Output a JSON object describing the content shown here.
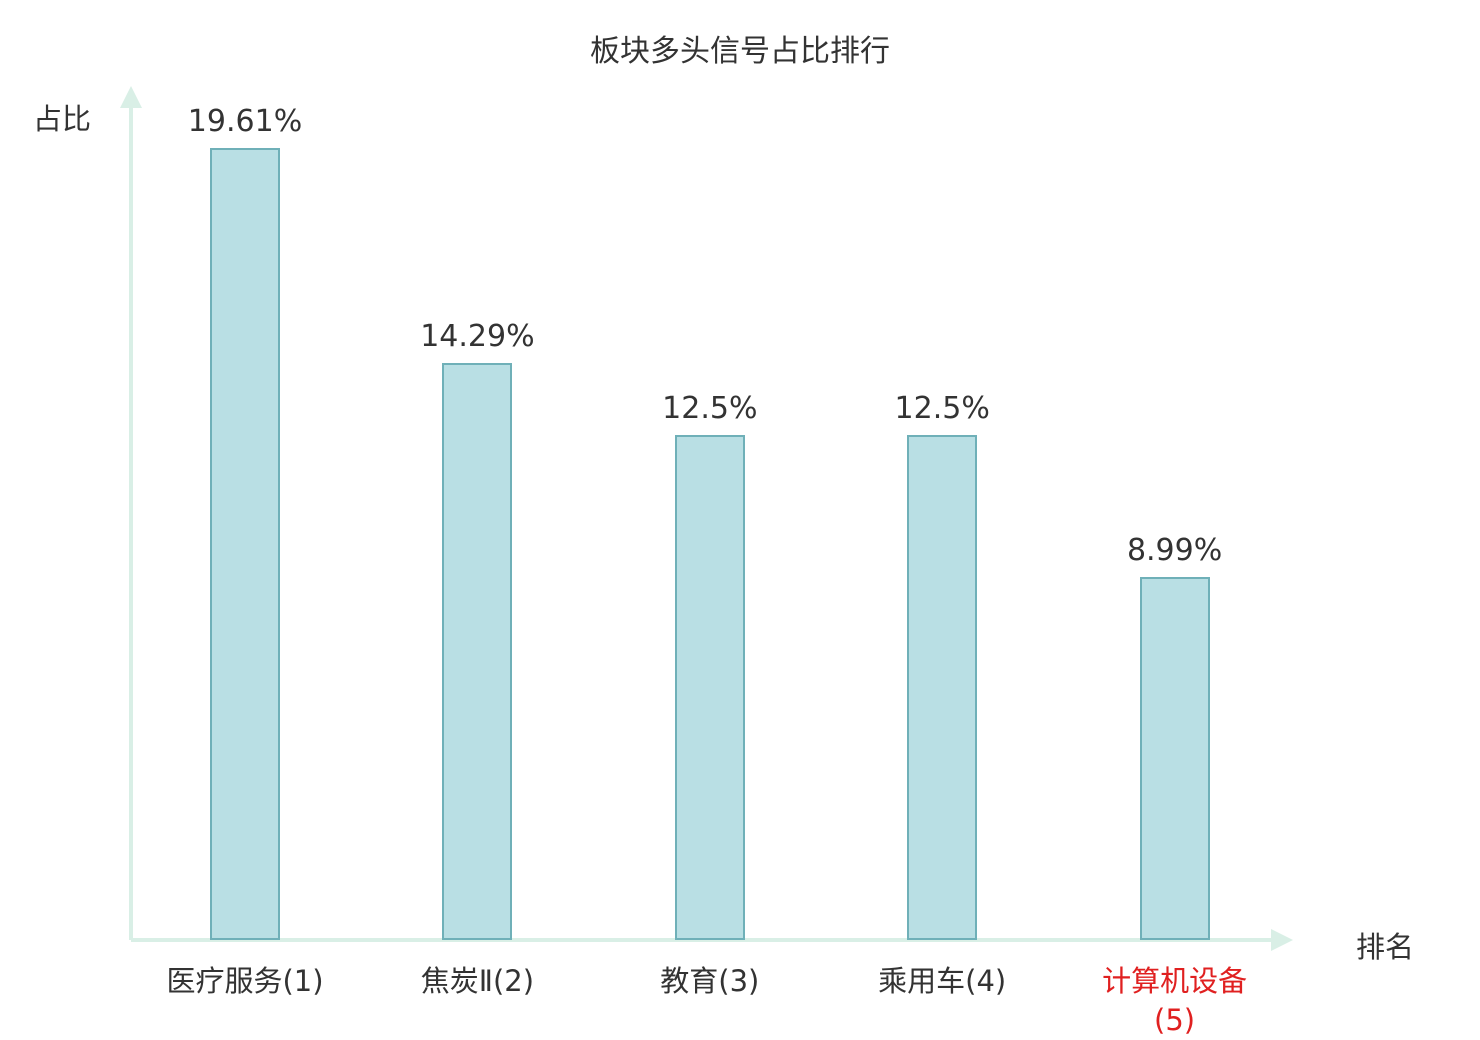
{
  "title": "板块多头信号占比排行",
  "axes": {
    "y_label": "占比",
    "x_label": "排名"
  },
  "colors": {
    "bar_fill": "#b9dfe4",
    "bar_border": "#6fb0b8",
    "axis": "#d9efe6",
    "text": "#333333",
    "highlight": "#e02020"
  },
  "chart_data": {
    "type": "bar",
    "title": "板块多头信号占比排行",
    "xlabel": "排名",
    "ylabel": "占比",
    "categories": [
      "医疗服务(1)",
      "焦炭Ⅱ(2)",
      "教育(3)",
      "乘用车(4)",
      "计算机设备(5)"
    ],
    "values": [
      19.61,
      14.29,
      12.5,
      12.5,
      8.99
    ],
    "value_labels": [
      "19.61%",
      "14.29%",
      "12.5%",
      "12.5%",
      "8.99%"
    ],
    "highlight_index": 4,
    "ylim": [
      0,
      20
    ],
    "grid": false,
    "legend": "none"
  }
}
